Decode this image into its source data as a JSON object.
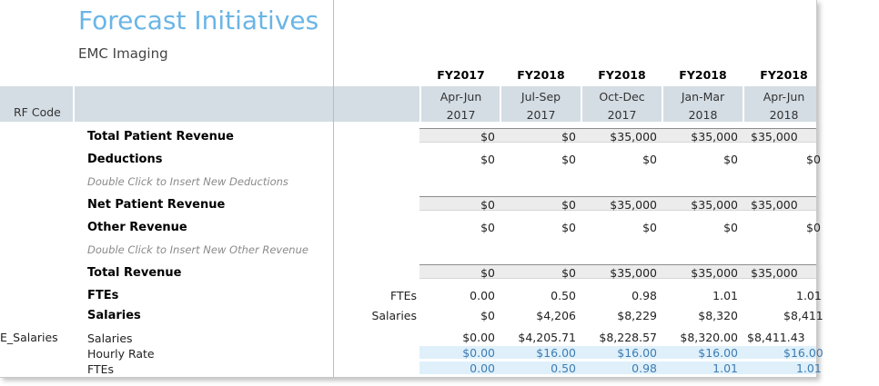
{
  "header": {
    "title": "Forecast Initiatives",
    "subtitle": "EMC Imaging",
    "rf_code_label": "RF Code"
  },
  "columns": [
    {
      "fy": "FY2017",
      "period": "Apr-Jun",
      "year": "2017"
    },
    {
      "fy": "FY2018",
      "period": "Jul-Sep",
      "year": "2017"
    },
    {
      "fy": "FY2018",
      "period": "Oct-Dec",
      "year": "2017"
    },
    {
      "fy": "FY2018",
      "period": "Jan-Mar",
      "year": "2018"
    },
    {
      "fy": "FY2018",
      "period": "Apr-Jun",
      "year": "2018"
    }
  ],
  "rows": {
    "total_patient_revenue": {
      "label": "Total Patient Revenue",
      "values": [
        "$0",
        "$0",
        "$35,000",
        "$35,000",
        "$35,000"
      ]
    },
    "deductions": {
      "label": "Deductions",
      "values": [
        "$0",
        "$0",
        "$0",
        "$0",
        "$0"
      ]
    },
    "deductions_hint": "Double Click to Insert New Deductions",
    "net_patient_revenue": {
      "label": "Net Patient Revenue",
      "values": [
        "$0",
        "$0",
        "$35,000",
        "$35,000",
        "$35,000"
      ]
    },
    "other_revenue": {
      "label": "Other Revenue",
      "values": [
        "$0",
        "$0",
        "$0",
        "$0",
        "$0"
      ]
    },
    "other_revenue_hint": "Double Click to Insert New Other Revenue",
    "total_revenue": {
      "label": "Total Revenue",
      "values": [
        "$0",
        "$0",
        "$35,000",
        "$35,000",
        "$35,000"
      ]
    },
    "ftes": {
      "label": "FTEs",
      "unit": "FTEs",
      "values": [
        "0.00",
        "0.50",
        "0.98",
        "1.01",
        "1.01"
      ]
    },
    "salaries": {
      "label": "Salaries",
      "unit": "Salaries",
      "values": [
        "$0",
        "$4,206",
        "$8,229",
        "$8,320",
        "$8,411"
      ]
    },
    "detail": {
      "code": "E_Salaries",
      "salaries": {
        "label": "Salaries",
        "values": [
          "$0.00",
          "$4,205.71",
          "$8,228.57",
          "$8,320.00",
          "$8,411.43"
        ]
      },
      "hourly_rate": {
        "label": "Hourly Rate",
        "values": [
          "$0.00",
          "$16.00",
          "$16.00",
          "$16.00",
          "$16.00"
        ]
      },
      "ftes": {
        "label": "FTEs",
        "values": [
          "0.00",
          "0.50",
          "0.98",
          "1.01",
          "1.01"
        ]
      }
    }
  }
}
